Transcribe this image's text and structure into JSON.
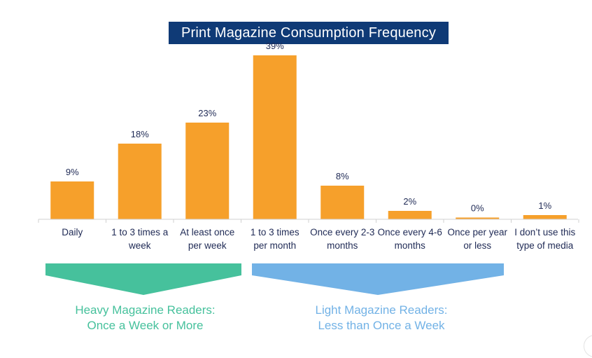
{
  "title": "Print Magazine Consumption Frequency",
  "colors": {
    "title_bg": "#0f3a76",
    "title_text": "#ffffff",
    "bar": "#f6a02b",
    "heavy": "#46c19c",
    "light": "#72b2e6",
    "text": "#1f2a55"
  },
  "chart_data": {
    "type": "bar",
    "title": "Print Magazine Consumption Frequency",
    "categories": [
      "Daily",
      "1 to 3 times a week",
      "At least once per week",
      "1 to 3 times per month",
      "Once every 2-3 months",
      "Once every 4-6 months",
      "Once per year or less",
      "I don’t use this type of media"
    ],
    "category_lines": [
      [
        "Daily"
      ],
      [
        "1 to 3 times a",
        "week"
      ],
      [
        "At least once",
        "per week"
      ],
      [
        "1 to 3 times",
        "per month"
      ],
      [
        "Once every 2-3",
        "months"
      ],
      [
        "Once every 4-6",
        "months"
      ],
      [
        "Once per year",
        "or less"
      ],
      [
        "I don’t use this",
        "type of media"
      ]
    ],
    "values": [
      9,
      18,
      23,
      39,
      8,
      2,
      0,
      1
    ],
    "data_labels": [
      "9%",
      "18%",
      "23%",
      "39%",
      "8%",
      "2%",
      "0%",
      "1%"
    ],
    "ylim": [
      0,
      40
    ],
    "grid": false,
    "legend": false
  },
  "groups": {
    "heavy": {
      "line1": "Heavy Magazine Readers:",
      "line2": "Once a Week or More"
    },
    "light": {
      "line1": "Light Magazine Readers:",
      "line2": "Less than Once a Week"
    }
  }
}
